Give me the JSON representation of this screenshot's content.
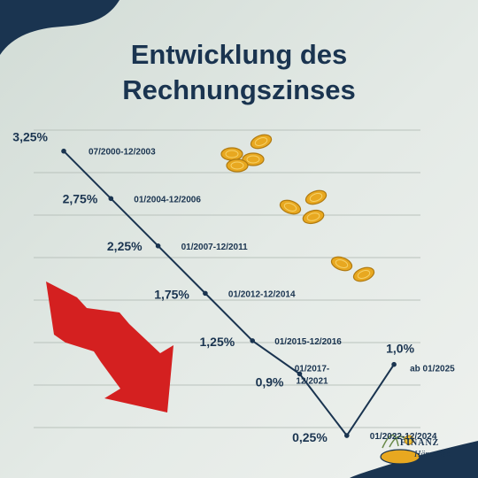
{
  "title_line1": "Entwicklung des",
  "title_line2": "Rechnungszinses",
  "brand": {
    "word1": "FINANZ",
    "word2": "Häppchen"
  },
  "colors": {
    "navy": "#1a3450",
    "arrow_red": "#d42020",
    "coin_gold": "#e8a820",
    "grid": "#b9c2bc"
  },
  "icons": [
    "coin-icon",
    "down-arrow-icon",
    "finanz-logo-icon"
  ],
  "chart_data": {
    "type": "line",
    "title": "Entwicklung des Rechnungszinses",
    "xlabel": "",
    "ylabel": "",
    "ylim": [
      0,
      3.5
    ],
    "grid": true,
    "points": [
      {
        "period": "07/2000-12/2003",
        "value": 3.25,
        "label": "3,25%"
      },
      {
        "period": "01/2004-12/2006",
        "value": 2.75,
        "label": "2,75%"
      },
      {
        "period": "01/2007-12/2011",
        "value": 2.25,
        "label": "2,25%"
      },
      {
        "period": "01/2012-12/2014",
        "value": 1.75,
        "label": "1,75%"
      },
      {
        "period": "01/2015-12/2016",
        "value": 1.25,
        "label": "1,25%"
      },
      {
        "period": "01/2017-\n12/2021",
        "value": 0.9,
        "label": "0,9%"
      },
      {
        "period": "01/2022-12/2024",
        "value": 0.25,
        "label": "0,25%"
      },
      {
        "period": "ab 01/2025",
        "value": 1.0,
        "label": "1,0%"
      }
    ]
  }
}
